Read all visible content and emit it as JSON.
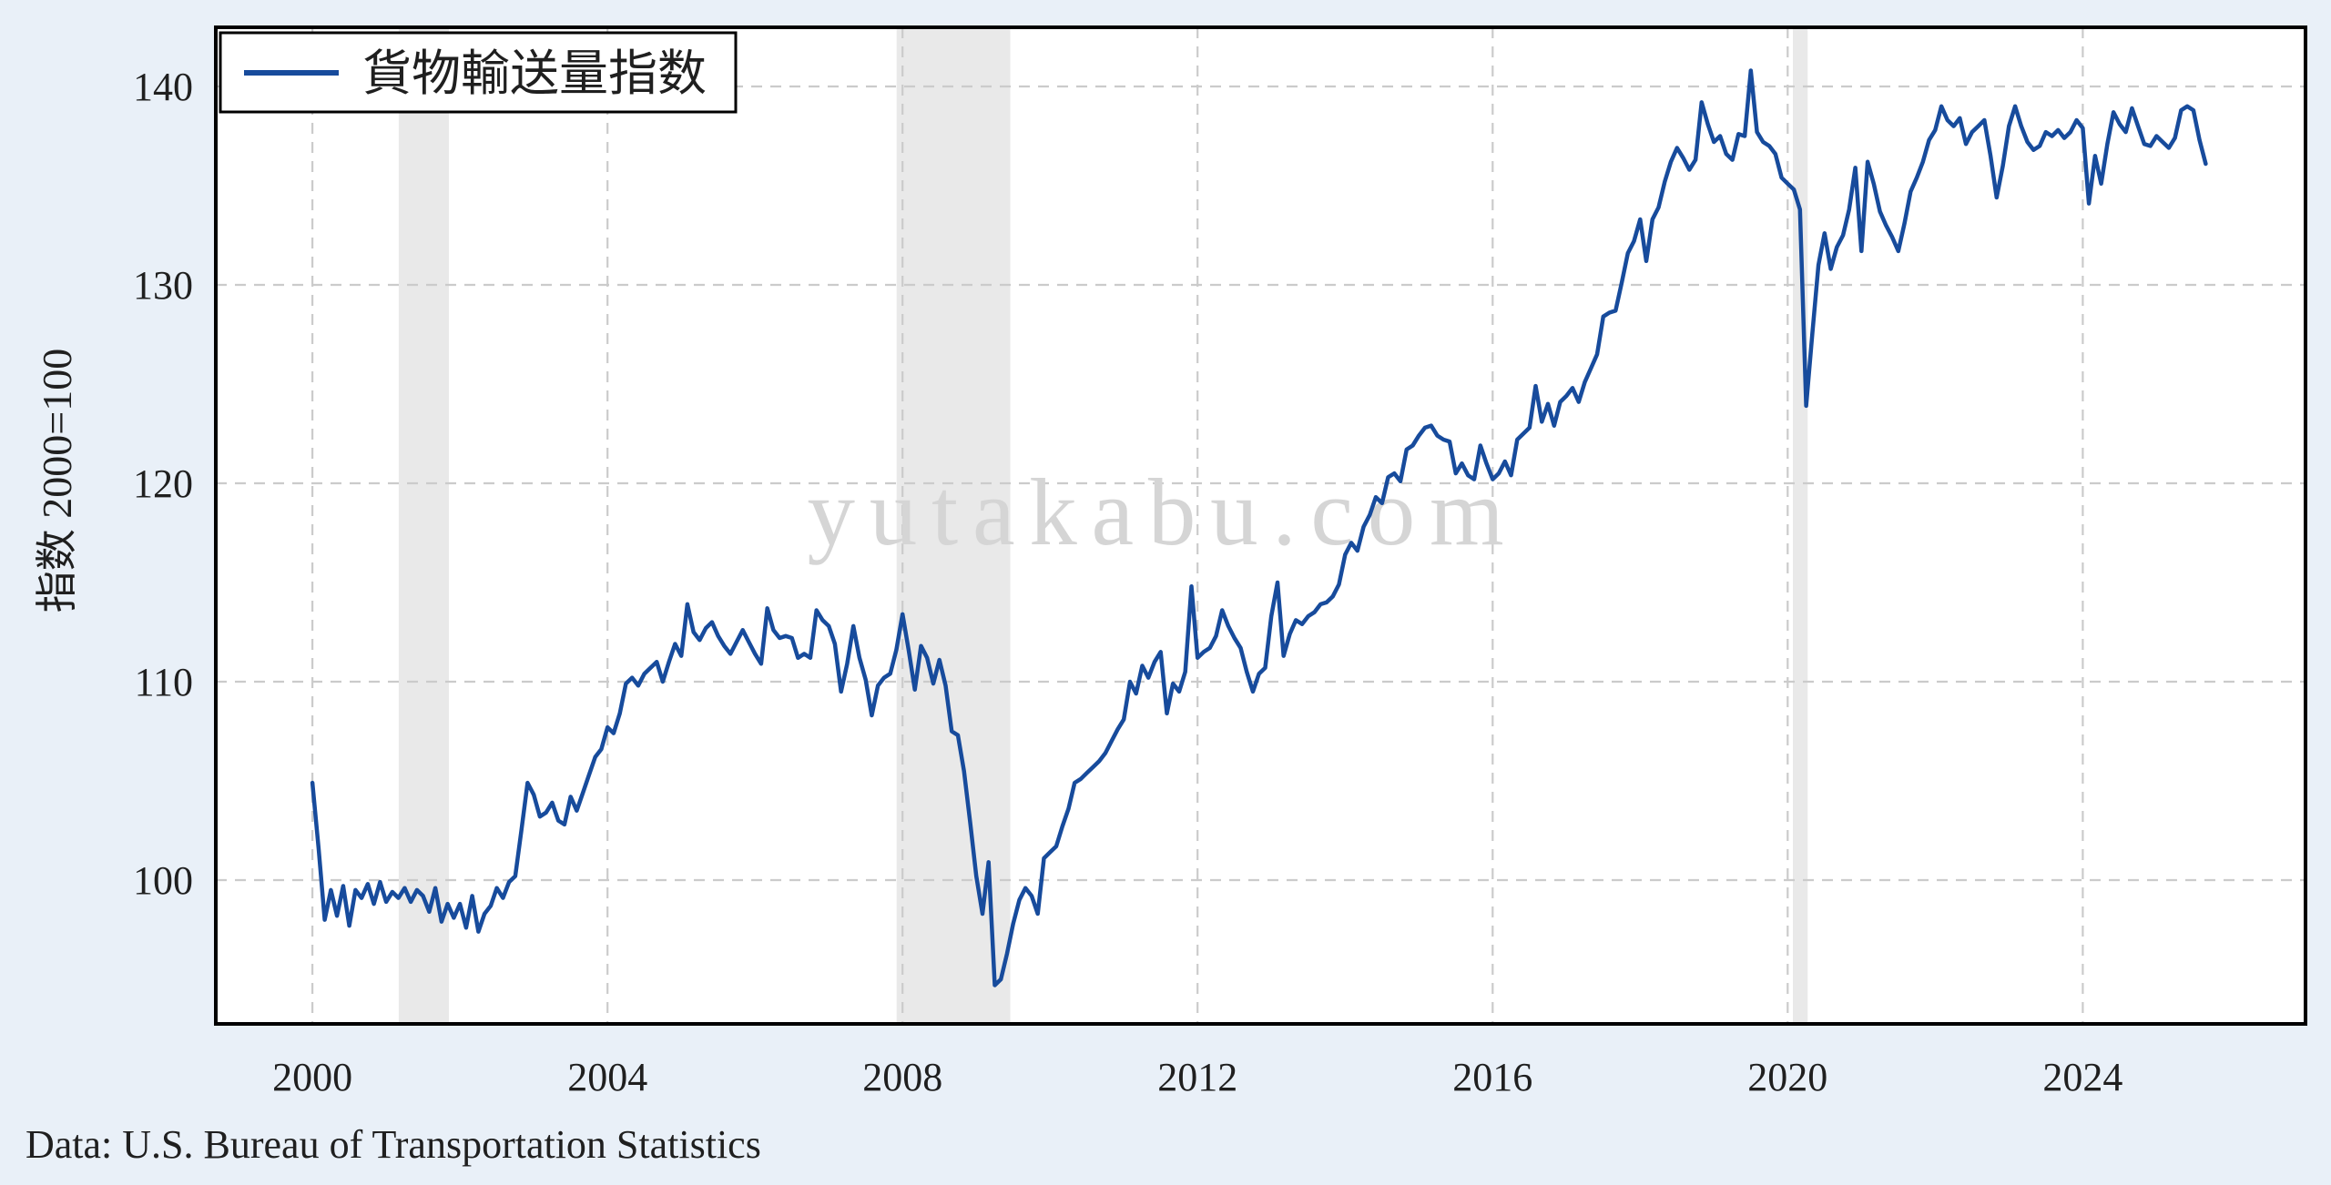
{
  "chart_data": {
    "type": "line",
    "legend_label": "貨物輸送量指数",
    "ylabel": "指数 2000=100",
    "xlabel": "",
    "watermark": "yutakabu.com",
    "source": "Data: U.S. Bureau of Transportation Statistics",
    "legend_position": "upper left",
    "grid": true,
    "x_ticks": [
      2000,
      2004,
      2008,
      2012,
      2016,
      2020,
      2024
    ],
    "y_ticks": [
      100,
      110,
      120,
      130,
      140
    ],
    "xlim": [
      1998.69,
      2027.02
    ],
    "ylim": [
      92.75,
      142.98
    ],
    "frequency": "monthly",
    "start_year": 2000,
    "start_month": 1,
    "recession_bands": [
      [
        2001.17,
        2001.85
      ],
      [
        2007.92,
        2009.46
      ],
      [
        2020.07,
        2020.27
      ]
    ],
    "series": [
      {
        "name": "貨物輸送量指数",
        "values": [
          104.9,
          101.6,
          98.0,
          99.5,
          98.2,
          99.7,
          97.7,
          99.5,
          99.1,
          99.8,
          98.8,
          99.9,
          98.9,
          99.4,
          99.1,
          99.6,
          98.9,
          99.5,
          99.2,
          98.4,
          99.6,
          97.9,
          98.8,
          98.1,
          98.8,
          97.6,
          99.2,
          97.4,
          98.3,
          98.7,
          99.6,
          99.1,
          99.9,
          100.2,
          102.5,
          104.9,
          104.3,
          103.2,
          103.4,
          103.9,
          103.0,
          102.8,
          104.2,
          103.5,
          104.4,
          105.3,
          106.2,
          106.6,
          107.7,
          107.4,
          108.4,
          109.9,
          110.2,
          109.8,
          110.4,
          110.7,
          111.0,
          110.0,
          111.0,
          111.9,
          111.3,
          113.9,
          112.5,
          112.1,
          112.7,
          113.0,
          112.3,
          111.8,
          111.4,
          112.0,
          112.6,
          112.0,
          111.4,
          110.9,
          113.7,
          112.6,
          112.2,
          112.3,
          112.2,
          111.2,
          111.4,
          111.2,
          113.6,
          113.1,
          112.8,
          111.9,
          109.5,
          110.9,
          112.8,
          111.2,
          110.1,
          108.3,
          109.8,
          110.2,
          110.4,
          111.6,
          113.4,
          111.6,
          109.6,
          111.8,
          111.2,
          109.9,
          111.1,
          109.8,
          107.5,
          107.3,
          105.5,
          102.9,
          100.2,
          98.3,
          100.9,
          94.7,
          95.0,
          96.3,
          97.8,
          99.0,
          99.6,
          99.2,
          98.3,
          101.1,
          101.4,
          101.7,
          102.7,
          103.6,
          104.9,
          105.1,
          105.4,
          105.7,
          106.0,
          106.4,
          107.0,
          107.6,
          108.1,
          110.0,
          109.4,
          110.8,
          110.2,
          111.0,
          111.5,
          108.4,
          109.9,
          109.5,
          110.5,
          114.8,
          111.2,
          111.5,
          111.7,
          112.3,
          113.6,
          112.8,
          112.2,
          111.7,
          110.5,
          109.5,
          110.4,
          110.7,
          113.3,
          115.0,
          111.3,
          112.4,
          113.1,
          112.9,
          113.3,
          113.5,
          113.9,
          114.0,
          114.3,
          114.9,
          116.4,
          117.0,
          116.6,
          117.8,
          118.4,
          119.3,
          119.0,
          120.3,
          120.5,
          120.1,
          121.7,
          121.9,
          122.4,
          122.8,
          122.9,
          122.4,
          122.2,
          122.1,
          120.5,
          121.0,
          120.4,
          120.2,
          121.9,
          121.0,
          120.2,
          120.5,
          121.1,
          120.4,
          122.2,
          122.5,
          122.8,
          124.9,
          123.1,
          124.0,
          122.9,
          124.1,
          124.4,
          124.8,
          124.1,
          125.1,
          125.8,
          126.5,
          128.4,
          128.6,
          128.7,
          130.1,
          131.6,
          132.2,
          133.3,
          131.2,
          133.3,
          133.9,
          135.2,
          136.2,
          136.9,
          136.4,
          135.8,
          136.3,
          139.2,
          138.1,
          137.2,
          137.5,
          136.6,
          136.3,
          137.6,
          137.5,
          140.8,
          137.7,
          137.2,
          137.0,
          136.6,
          135.4,
          135.1,
          134.8,
          133.8,
          123.9,
          127.5,
          131.0,
          132.6,
          130.8,
          131.9,
          132.5,
          133.8,
          135.9,
          131.7,
          136.2,
          135.1,
          133.7,
          133.0,
          132.4,
          131.7,
          133.1,
          134.7,
          135.4,
          136.2,
          137.3,
          137.8,
          139.0,
          138.3,
          138.0,
          138.4,
          137.1,
          137.7,
          138.0,
          138.3,
          136.5,
          134.4,
          136.0,
          138.0,
          139.0,
          138.0,
          137.2,
          136.8,
          137.0,
          137.7,
          137.5,
          137.8,
          137.4,
          137.7,
          138.3,
          137.9,
          134.1,
          136.5,
          135.1,
          137.1,
          138.7,
          138.1,
          137.7,
          138.9,
          138.0,
          137.1,
          137.0,
          137.5,
          137.2,
          136.9,
          137.4,
          138.8,
          139.0,
          138.8,
          137.3,
          136.1
        ]
      }
    ],
    "colors": {
      "line": "#174b9c",
      "grid": "#cbcbcb",
      "recession_band": "#e9e9e9",
      "outer_background": "#e9f0f8",
      "plot_background": "#ffffff",
      "frame": "#000000",
      "text": "#1f1f1f",
      "watermark": "#d5d5d5"
    }
  }
}
